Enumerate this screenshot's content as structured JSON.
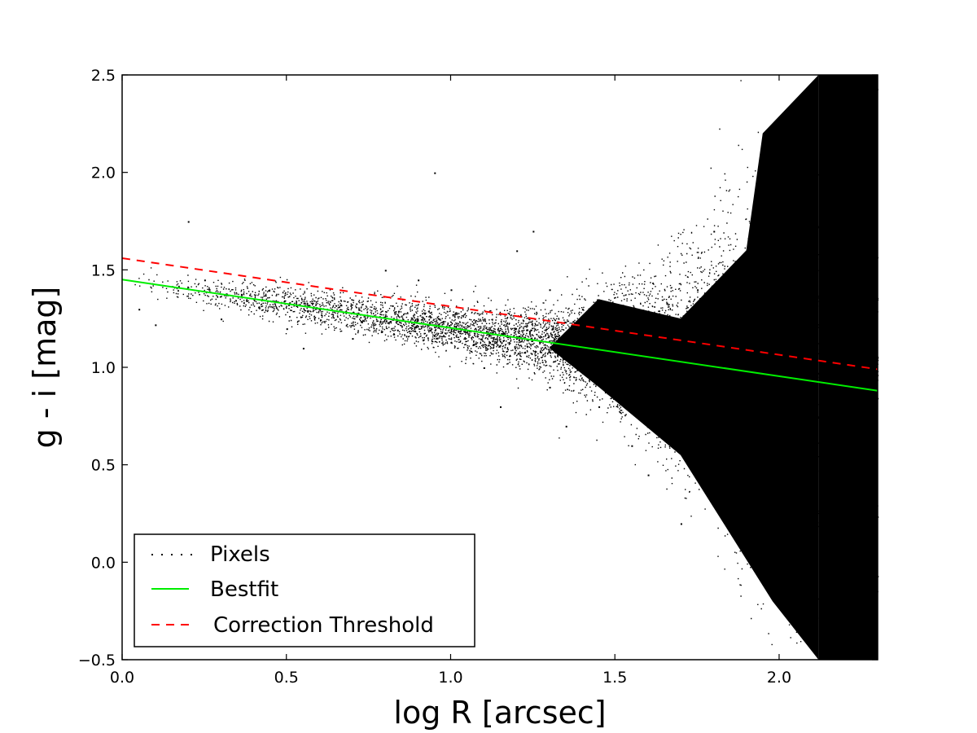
{
  "chart_data": {
    "type": "scatter",
    "title": "",
    "xlabel": "log R [arcsec]",
    "ylabel": "g - i [mag]",
    "xlim": [
      0.0,
      2.3
    ],
    "ylim": [
      -0.5,
      2.5
    ],
    "xticks": [
      0.0,
      0.5,
      1.0,
      1.5,
      2.0
    ],
    "xtick_labels": [
      "0.0",
      "0.5",
      "1.0",
      "1.5",
      "2.0"
    ],
    "yticks": [
      -0.5,
      0.0,
      0.5,
      1.0,
      1.5,
      2.0,
      2.5
    ],
    "ytick_labels": [
      "−0.5",
      "0.0",
      "0.5",
      "1.0",
      "1.5",
      "2.0",
      "2.5"
    ],
    "grid": false,
    "legend_position": "lower-left",
    "series": [
      {
        "name": "Pixels",
        "kind": "scatter",
        "color": "#000000",
        "points": [
          [
            0.05,
            1.3
          ],
          [
            0.1,
            1.22
          ],
          [
            0.2,
            1.75
          ],
          [
            0.25,
            1.45
          ],
          [
            0.3,
            1.25
          ],
          [
            0.4,
            1.35
          ],
          [
            0.5,
            1.2
          ],
          [
            0.55,
            1.1
          ],
          [
            0.6,
            1.3
          ],
          [
            0.7,
            1.15
          ],
          [
            0.8,
            1.5
          ],
          [
            0.9,
            1.45
          ],
          [
            0.95,
            2.0
          ],
          [
            1.0,
            1.4
          ],
          [
            1.1,
            1.0
          ],
          [
            1.15,
            0.8
          ],
          [
            1.2,
            1.6
          ],
          [
            1.25,
            1.7
          ],
          [
            1.3,
            1.4
          ],
          [
            1.3,
            0.9
          ],
          [
            1.35,
            0.7
          ],
          [
            1.4,
            1.3
          ],
          [
            1.45,
            0.8
          ],
          [
            1.5,
            1.2
          ],
          [
            1.55,
            0.6
          ],
          [
            1.6,
            0.45
          ],
          [
            1.65,
            0.9
          ],
          [
            1.7,
            0.2
          ],
          [
            1.75,
            1.4
          ],
          [
            1.8,
            1.7
          ],
          [
            1.85,
            0.6
          ],
          [
            1.9,
            1.2
          ],
          [
            1.95,
            0.3
          ],
          [
            2.0,
            1.8
          ],
          [
            2.05,
            2.2
          ],
          [
            2.1,
            0.0
          ],
          [
            2.15,
            2.4
          ],
          [
            2.2,
            -0.3
          ],
          [
            2.25,
            1.0
          ],
          [
            2.28,
            2.5
          ]
        ]
      },
      {
        "name": "Bestfit",
        "kind": "line",
        "color": "#00ee00",
        "dash": "solid",
        "x": [
          0.0,
          2.3
        ],
        "y": [
          1.45,
          0.88
        ]
      },
      {
        "name": "Correction Threshold",
        "kind": "line",
        "color": "#ff0000",
        "dash": "dashed",
        "x": [
          0.0,
          2.3
        ],
        "y": [
          1.56,
          0.99
        ]
      }
    ]
  }
}
